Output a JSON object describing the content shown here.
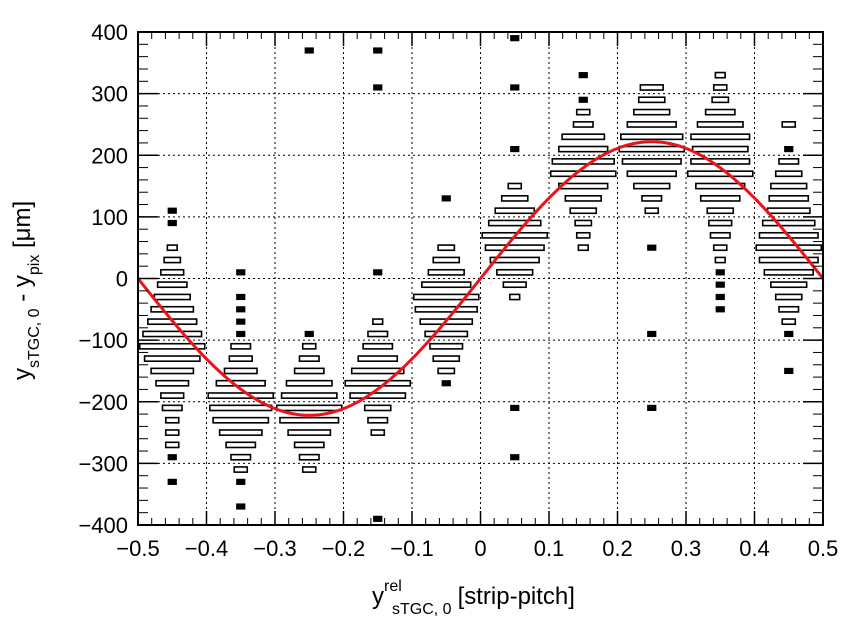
{
  "chart_data": {
    "type": "box-histogram",
    "xlabel": {
      "base": "y",
      "superscript": "rel",
      "subscript": "sTGC, 0",
      "suffix": "[strip-pitch]"
    },
    "ylabel": {
      "base1": "y",
      "sub1": "sTGC, 0",
      "mid": " - y",
      "sub2": "pix",
      "suffix": " [μm]"
    },
    "xlim": [
      -0.5,
      0.5
    ],
    "ylim": [
      -400,
      400
    ],
    "x_ticks": [
      -0.5,
      -0.4,
      -0.3,
      -0.2,
      -0.1,
      0,
      0.1,
      0.2,
      0.3,
      0.4,
      0.5
    ],
    "x_tick_labels": [
      "−0.5",
      "−0.4",
      "−0.3",
      "−0.2",
      "−0.1",
      "0",
      "0.1",
      "0.2",
      "0.3",
      "0.4",
      "0.5"
    ],
    "y_ticks": [
      -400,
      -300,
      -200,
      -100,
      0,
      100,
      200,
      300,
      400
    ],
    "y_tick_labels": [
      "−400",
      "−300",
      "−200",
      "−100",
      "0",
      "100",
      "200",
      "300",
      "400"
    ],
    "grid": true,
    "x_bin_width": 0.1,
    "y_bin_width": 10,
    "box_columns": [
      {
        "x": -0.45,
        "y_values": [
          -330,
          -290,
          -270,
          -250,
          -230,
          -210,
          -190,
          -170,
          -150,
          -130,
          -110,
          -90,
          -70,
          -50,
          -30,
          -10,
          10,
          30,
          50,
          90,
          110
        ],
        "weights": [
          0.1,
          0.1,
          0.2,
          0.2,
          0.2,
          0.3,
          0.35,
          0.5,
          0.65,
          0.85,
          1.0,
          0.9,
          0.75,
          0.65,
          0.55,
          0.45,
          0.35,
          0.25,
          0.15,
          0.1,
          0.1
        ]
      },
      {
        "x": -0.35,
        "y_values": [
          -370,
          -330,
          -310,
          -290,
          -270,
          -250,
          -230,
          -210,
          -190,
          -170,
          -150,
          -130,
          -110,
          -90,
          -70,
          -50,
          -30,
          10
        ],
        "weights": [
          0.1,
          0.1,
          0.2,
          0.3,
          0.45,
          0.65,
          0.85,
          0.95,
          1.0,
          0.75,
          0.5,
          0.35,
          0.3,
          0.1,
          0.1,
          0.1,
          0.1,
          0.1
        ]
      },
      {
        "x": -0.25,
        "y_values": [
          -310,
          -290,
          -270,
          -250,
          -230,
          -210,
          -190,
          -170,
          -150,
          -130,
          -110,
          -90,
          370
        ],
        "weights": [
          0.2,
          0.3,
          0.45,
          0.65,
          0.9,
          1.0,
          0.85,
          0.7,
          0.45,
          0.3,
          0.2,
          0.1,
          0.1
        ]
      },
      {
        "x": -0.15,
        "y_values": [
          -390,
          -250,
          -230,
          -210,
          -190,
          -170,
          -150,
          -130,
          -110,
          -90,
          -70,
          10,
          310,
          370
        ],
        "weights": [
          0.1,
          0.2,
          0.3,
          0.4,
          0.85,
          1.0,
          0.8,
          0.6,
          0.45,
          0.3,
          0.15,
          0.1,
          0.1,
          0.1
        ]
      },
      {
        "x": -0.05,
        "y_values": [
          -170,
          -150,
          -130,
          -110,
          -90,
          -70,
          -50,
          -30,
          -10,
          10,
          30,
          50,
          130
        ],
        "weights": [
          0.1,
          0.25,
          0.4,
          0.5,
          0.65,
          0.8,
          0.95,
          1.0,
          0.75,
          0.55,
          0.4,
          0.25,
          0.1
        ]
      },
      {
        "x": 0.05,
        "y_values": [
          -290,
          -210,
          -30,
          -10,
          10,
          30,
          50,
          70,
          90,
          110,
          130,
          150,
          210,
          310,
          390
        ],
        "weights": [
          0.1,
          0.1,
          0.15,
          0.35,
          0.55,
          0.75,
          0.9,
          1.0,
          0.8,
          0.6,
          0.4,
          0.2,
          0.1,
          0.1,
          0.1
        ]
      },
      {
        "x": 0.15,
        "y_values": [
          50,
          70,
          90,
          110,
          130,
          150,
          170,
          190,
          210,
          230,
          250,
          270,
          290,
          330
        ],
        "weights": [
          0.15,
          0.2,
          0.25,
          0.4,
          0.55,
          0.75,
          1.0,
          0.95,
          0.75,
          0.65,
          0.3,
          0.2,
          0.1,
          0.1
        ]
      },
      {
        "x": 0.25,
        "y_values": [
          -210,
          -90,
          50,
          110,
          130,
          150,
          170,
          190,
          210,
          230,
          250,
          270,
          290,
          310
        ],
        "weights": [
          0.1,
          0.1,
          0.1,
          0.2,
          0.3,
          0.55,
          0.75,
          0.9,
          1.0,
          0.95,
          0.75,
          0.55,
          0.4,
          0.35
        ]
      },
      {
        "x": 0.35,
        "y_values": [
          -50,
          -30,
          -10,
          10,
          30,
          50,
          70,
          90,
          110,
          130,
          150,
          170,
          190,
          210,
          230,
          250,
          270,
          290,
          310,
          330
        ],
        "weights": [
          0.1,
          0.1,
          0.1,
          0.1,
          0.15,
          0.2,
          0.3,
          0.35,
          0.4,
          0.6,
          0.75,
          1.0,
          0.9,
          0.85,
          0.9,
          0.7,
          0.45,
          0.25,
          0.2,
          0.15
        ]
      },
      {
        "x": 0.45,
        "y_values": [
          -150,
          -90,
          -70,
          -50,
          -30,
          -10,
          10,
          30,
          50,
          70,
          90,
          110,
          130,
          150,
          170,
          190,
          210,
          250
        ],
        "weights": [
          0.1,
          0.1,
          0.2,
          0.3,
          0.4,
          0.55,
          0.75,
          0.9,
          1.0,
          0.9,
          0.8,
          0.65,
          0.6,
          0.55,
          0.4,
          0.3,
          0.1,
          0.2
        ]
      }
    ],
    "fit_curve": {
      "function": "sine",
      "amplitude": 222,
      "period": 1.0,
      "phase_zero_at": 0.0,
      "color": "#e8141a"
    },
    "colors": {
      "fit": "#e8141a",
      "boxes": "#000000",
      "grid": "#000000"
    }
  }
}
